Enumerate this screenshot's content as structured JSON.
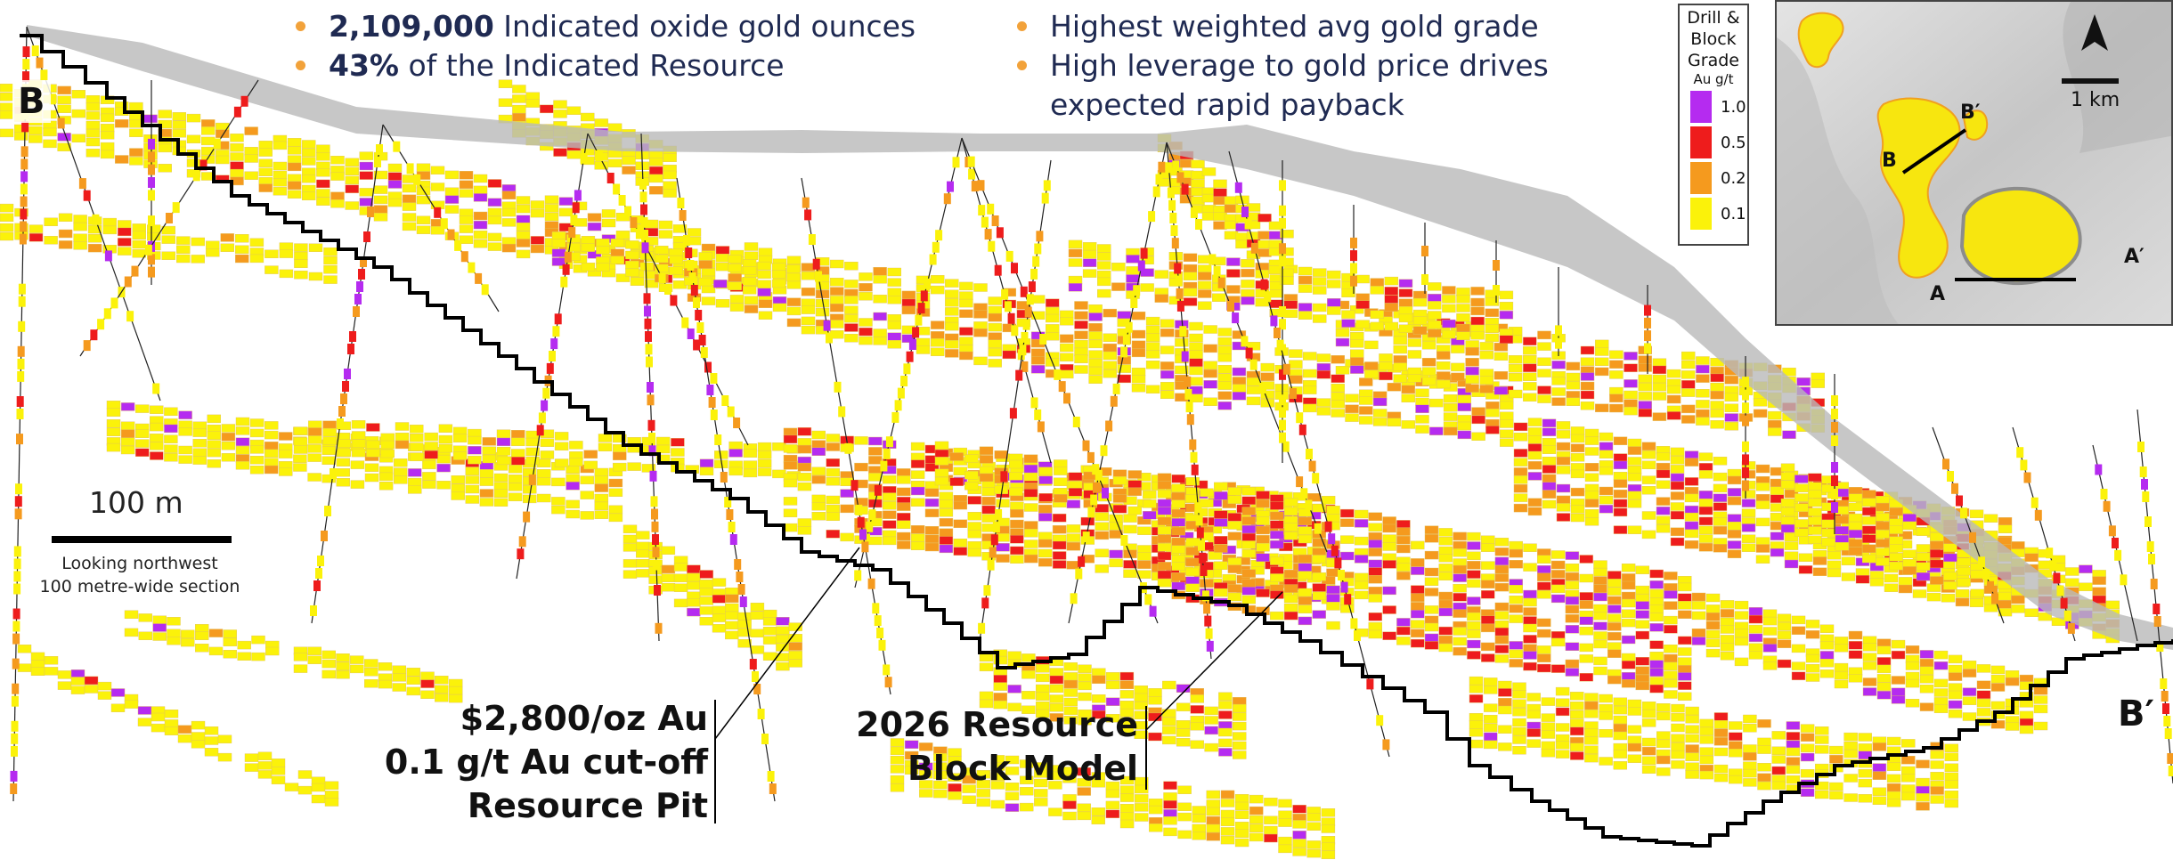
{
  "bullets_left": [
    {
      "bold": "2,109,000",
      "text": " Indicated oxide gold ounces"
    },
    {
      "bold": "43%",
      "text": " of the Indicated Resource"
    }
  ],
  "bullets_right": [
    {
      "text": "Highest weighted avg gold grade"
    },
    {
      "text": "High leverage to gold price drives expected rapid payback"
    }
  ],
  "section_labels": {
    "start": "B",
    "end": "B′"
  },
  "scale_bar": {
    "label": "100 m"
  },
  "view_note": {
    "line1": "Looking northwest",
    "line2": "100 metre-wide section"
  },
  "pit_callout": {
    "line1": "$2,800/oz Au",
    "line2": "0.1 g/t Au cut-off",
    "line3": "Resource Pit"
  },
  "model_callout": {
    "line1": "2026 Resource",
    "line2": "Block Model"
  },
  "legend": {
    "title_lines": [
      "Drill &",
      "Block",
      "Grade"
    ],
    "unit": "Au g/t",
    "items": [
      {
        "label": "1.0",
        "color": "#b52bf0"
      },
      {
        "label": "0.5",
        "color": "#ee1c1c"
      },
      {
        "label": "0.2",
        "color": "#f59a1e"
      },
      {
        "label": "0.1",
        "color": "#fbf20a"
      }
    ]
  },
  "inset_map": {
    "scale_label": "1 km",
    "labels": {
      "b": "B",
      "b_prime": "B′",
      "a": "A",
      "a_prime": "A′"
    }
  },
  "colors": {
    "navy_text": "#1f2a52",
    "bullet_orange": "#f2a23a",
    "topo_gray": "#b9b9b9",
    "pit_line": "#000000"
  }
}
